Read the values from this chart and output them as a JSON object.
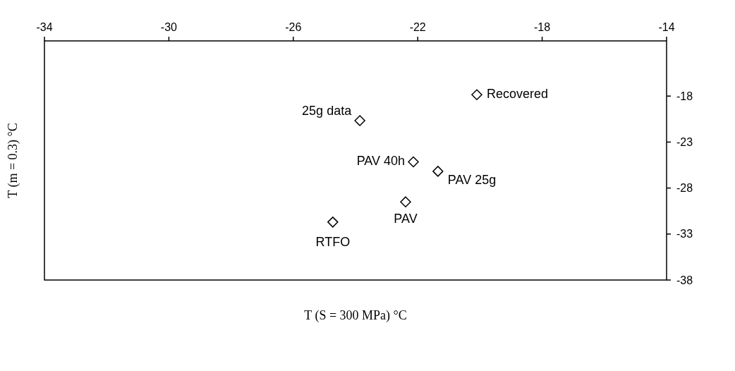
{
  "chart_data": {
    "type": "scatter",
    "xlabel": "T (S = 300 MPa) °C",
    "ylabel": "T (m = 0.3) °C",
    "x": [
      -20.1,
      -23.86,
      -22.14,
      -21.35,
      -22.39,
      -24.73
    ],
    "values": [
      -17.85,
      -20.67,
      -25.15,
      -26.18,
      -29.5,
      -31.7
    ],
    "color": "#000000",
    "marker": "diamond",
    "xlim": [
      -34,
      -14
    ],
    "xticks": [
      -34,
      -30,
      -26,
      -22,
      -18,
      -14
    ],
    "ylim": [
      -38,
      -12
    ],
    "yticks": [
      -38,
      -33,
      -28,
      -23,
      -18
    ],
    "annotations": [
      {
        "text": "Recovered",
        "x": -20.1,
        "y": -17.85
      },
      {
        "text": "25g data",
        "x": -23.86,
        "y": -20.67
      },
      {
        "text": "PAV 40h",
        "x": -22.14,
        "y": -25.15
      },
      {
        "text": "PAV 25g",
        "x": -21.35,
        "y": -26.18
      },
      {
        "text": "PAV",
        "x": -22.39,
        "y": -29.5
      },
      {
        "text": "RTFO",
        "x": -24.73,
        "y": -31.7
      }
    ]
  }
}
